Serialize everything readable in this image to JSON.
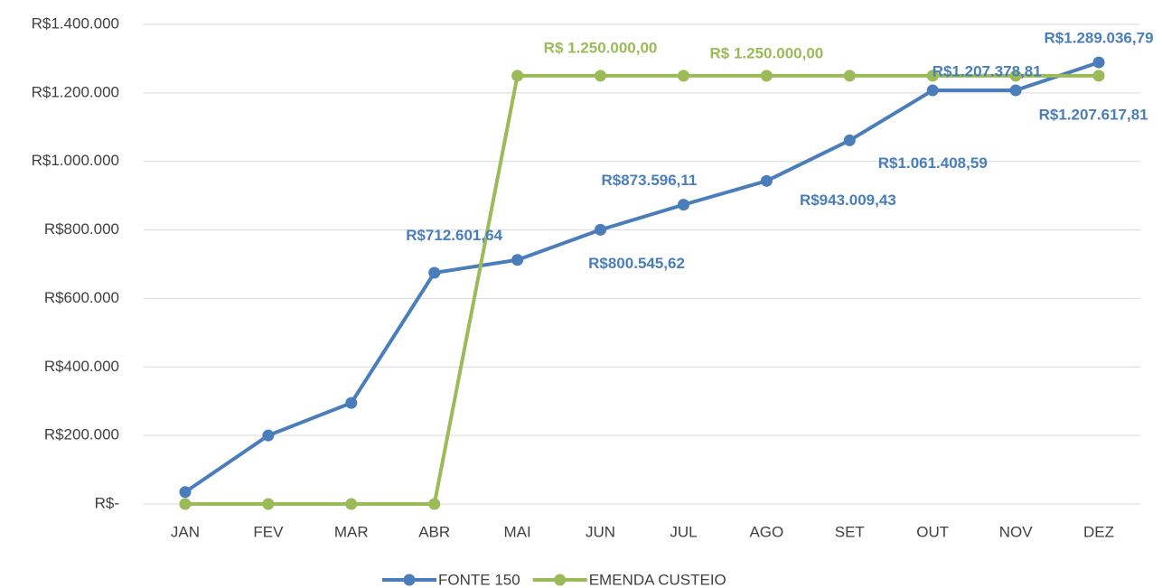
{
  "chart_data": {
    "type": "line",
    "categories": [
      "JAN",
      "FEV",
      "MAR",
      "ABR",
      "MAI",
      "JUN",
      "JUL",
      "AGO",
      "SET",
      "OUT",
      "NOV",
      "DEZ"
    ],
    "series": [
      {
        "name": "FONTE 150",
        "color": "#4a7ebb",
        "values": [
          35000,
          200000,
          295000,
          675000,
          712601.64,
          800545.62,
          873596.11,
          943009.43,
          1061408.59,
          1207378.81,
          1207617.81,
          1289036.79
        ],
        "value_labels": [
          null,
          null,
          null,
          null,
          "R$712.601,64",
          "R$800.545,62",
          "R$873.596,11",
          "R$943.009,43",
          "R$1.061.408,59",
          "R$1.207.378,81",
          "R$1.207.617,81",
          "R$1.289.036,79"
        ]
      },
      {
        "name": "EMENDA CUSTEIO",
        "color": "#9bbb59",
        "values": [
          0,
          0,
          0,
          0,
          1250000,
          1250000,
          1250000,
          1250000,
          1250000,
          1250000,
          1250000,
          1250000
        ],
        "value_labels": [
          null,
          null,
          null,
          null,
          null,
          "R$ 1.250.000,00",
          null,
          "R$ 1.250.000,00",
          null,
          null,
          null,
          null
        ]
      }
    ],
    "ylim": [
      0,
      1400000
    ],
    "yticks": [
      {
        "value": 0,
        "label": "R$-"
      },
      {
        "value": 200000,
        "label": "R$200.000"
      },
      {
        "value": 400000,
        "label": "R$400.000"
      },
      {
        "value": 600000,
        "label": "R$600.000"
      },
      {
        "value": 800000,
        "label": "R$800.000"
      },
      {
        "value": 1000000,
        "label": "R$1.000.000"
      },
      {
        "value": 1200000,
        "label": "R$1.200.000"
      },
      {
        "value": 1400000,
        "label": "R$1.400.000"
      }
    ],
    "grid": true,
    "legend": "bottom"
  }
}
